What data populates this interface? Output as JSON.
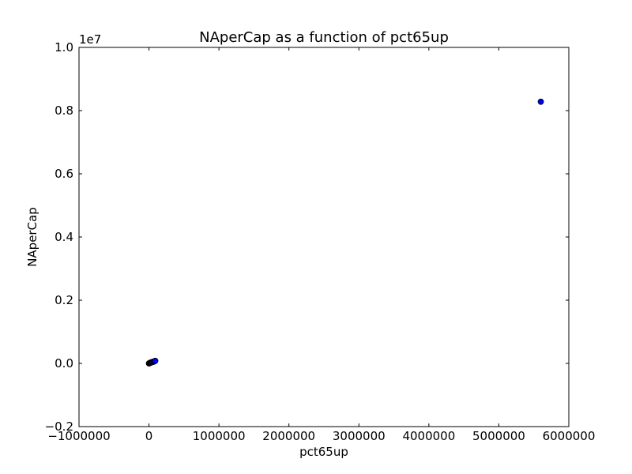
{
  "chart_data": {
    "type": "scatter",
    "title": "NAperCap as a function of pct65up",
    "xlabel": "pct65up",
    "ylabel": "NAperCap",
    "xlim": [
      -1000000,
      6000000
    ],
    "ylim": [
      -0.2,
      1.0
    ],
    "y_scale_label": "1e7",
    "y_multiplier": 10000000,
    "grid": false,
    "x_ticks": [
      {
        "value": -1000000,
        "label": "−1000000"
      },
      {
        "value": 0,
        "label": "0"
      },
      {
        "value": 1000000,
        "label": "1000000"
      },
      {
        "value": 2000000,
        "label": "2000000"
      },
      {
        "value": 3000000,
        "label": "3000000"
      },
      {
        "value": 4000000,
        "label": "4000000"
      },
      {
        "value": 5000000,
        "label": "5000000"
      },
      {
        "value": 6000000,
        "label": "6000000"
      }
    ],
    "y_ticks": [
      {
        "value": -0.2,
        "label": "−0.2"
      },
      {
        "value": 0.0,
        "label": "0.0"
      },
      {
        "value": 0.2,
        "label": "0.2"
      },
      {
        "value": 0.4,
        "label": "0.4"
      },
      {
        "value": 0.6,
        "label": "0.6"
      },
      {
        "value": 0.8,
        "label": "0.8"
      },
      {
        "value": 1.0,
        "label": "1.0"
      }
    ],
    "marker_color": "#0000ff",
    "series": [
      {
        "x": [
          5600000,
          0,
          5000,
          10000,
          15000,
          20000,
          25000,
          30000,
          40000,
          50000,
          60000,
          70000,
          80000,
          90000
        ],
        "y": [
          0.828,
          0.0,
          0.0005,
          0.001,
          0.0015,
          0.002,
          0.0025,
          0.003,
          0.004,
          0.0045,
          0.005,
          0.006,
          0.007,
          0.008
        ]
      }
    ]
  }
}
